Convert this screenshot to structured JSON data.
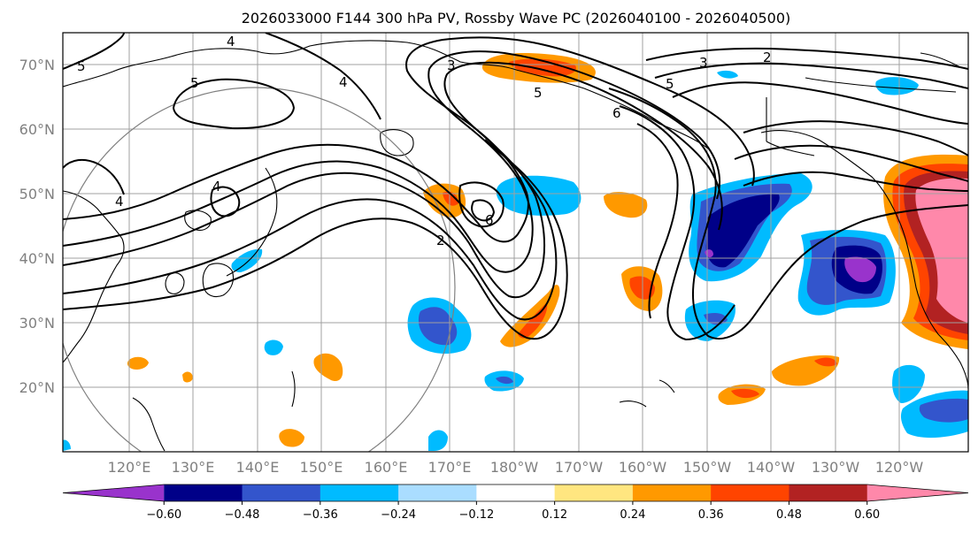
{
  "title": "2026033000 F144 300 hPa PV, Rossby Wave PC (2026040100 - 2026040500)",
  "lat_labels": [
    "70°N",
    "60°N",
    "50°N",
    "40°N",
    "30°N",
    "20°N"
  ],
  "lon_labels": [
    "120°E",
    "130°E",
    "140°E",
    "150°E",
    "160°E",
    "170°E",
    "180°W",
    "170°W",
    "160°W",
    "150°W",
    "140°W",
    "130°W",
    "120°W"
  ],
  "colorbar": {
    "ticks": [
      "−0.60",
      "−0.48",
      "−0.36",
      "−0.24",
      "−0.12",
      "0.12",
      "0.24",
      "0.36",
      "0.48",
      "0.60"
    ],
    "colors": [
      "#9933cc",
      "#000088",
      "#3355cc",
      "#00bbff",
      "#aaddff",
      "#ffffff",
      "#ffe680",
      "#ff9900",
      "#ff4400",
      "#b22222",
      "#ff88aa"
    ]
  },
  "contour_labels": [
    "4",
    "5",
    "5",
    "4",
    "3",
    "2",
    "3",
    "5",
    "4",
    "6",
    "2",
    "6",
    "4",
    "5"
  ],
  "palette": {
    "purple": "#9933cc",
    "navy": "#000088",
    "blue": "#3355cc",
    "cyan": "#00bbff",
    "lightcyan": "#aaddff",
    "yellow": "#ffe680",
    "orange": "#ff9900",
    "redorange": "#ff4400",
    "darkred": "#b22222",
    "pink": "#ff88aa"
  }
}
